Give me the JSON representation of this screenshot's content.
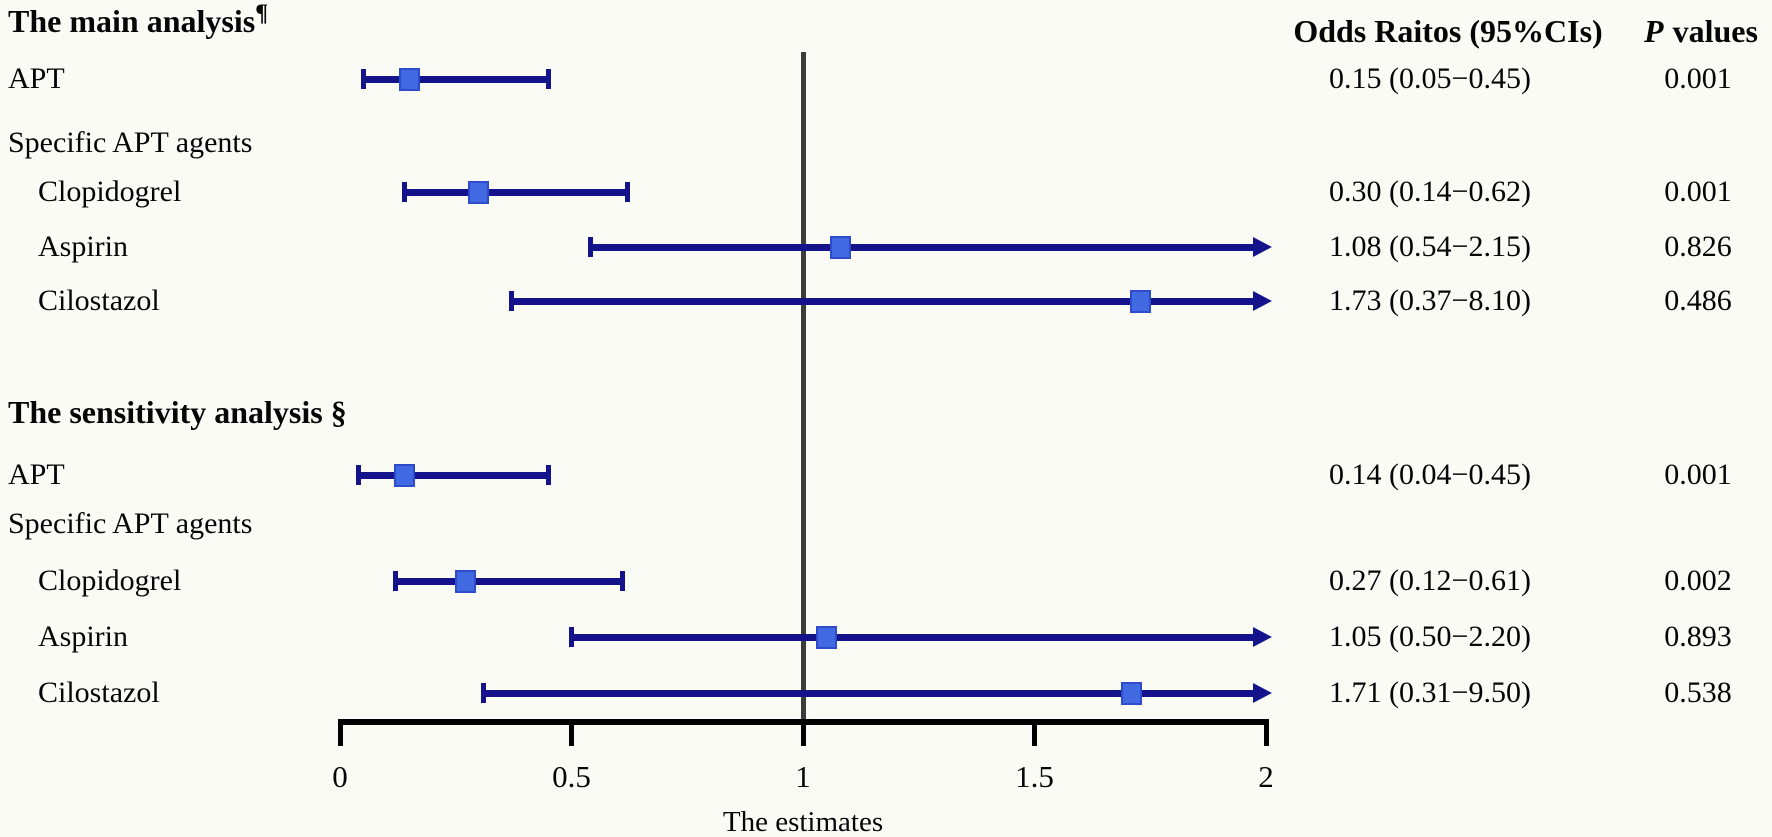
{
  "figure": {
    "xlabel": "The estimates"
  },
  "chart_data": {
    "type": "forest",
    "xlabel": "The estimates",
    "xlim": [
      0,
      2
    ],
    "x_ticks": [
      "0",
      "0.5",
      "1",
      "1.5",
      "2"
    ],
    "x_tick_values": [
      0,
      0.5,
      1,
      1.5,
      2
    ],
    "reference_line": 1,
    "grid": false,
    "columns": {
      "or_header": "Odds Raitos (95%CIs)",
      "p_header_italic": "P",
      "p_header_rest": "values"
    },
    "sections": [
      {
        "title": "The main analysis",
        "title_sup": "¶",
        "rows": [
          {
            "label": "APT",
            "indent": false,
            "group_header": false,
            "estimate": 0.15,
            "ci_low": 0.05,
            "ci_high": 0.45,
            "or_text": "0.15 (0.05−0.45)",
            "p_text": "0.001",
            "arrow_right": false
          },
          {
            "label": "Specific APT agents",
            "indent": false,
            "group_header": true
          },
          {
            "label": "Clopidogrel",
            "indent": true,
            "group_header": false,
            "estimate": 0.3,
            "ci_low": 0.14,
            "ci_high": 0.62,
            "or_text": "0.30 (0.14−0.62)",
            "p_text": "0.001",
            "arrow_right": false
          },
          {
            "label": "Aspirin",
            "indent": true,
            "group_header": false,
            "estimate": 1.08,
            "ci_low": 0.54,
            "ci_high": 2.15,
            "or_text": "1.08 (0.54−2.15)",
            "p_text": "0.826",
            "arrow_right": true
          },
          {
            "label": "Cilostazol",
            "indent": true,
            "group_header": false,
            "estimate": 1.73,
            "ci_low": 0.37,
            "ci_high": 8.1,
            "or_text": "1.73 (0.37−8.10)",
            "p_text": "0.486",
            "arrow_right": true
          }
        ]
      },
      {
        "title": "The sensitivity analysis §",
        "title_sup": "",
        "rows": [
          {
            "label": "APT",
            "indent": false,
            "group_header": false,
            "estimate": 0.14,
            "ci_low": 0.04,
            "ci_high": 0.45,
            "or_text": "0.14 (0.04−0.45)",
            "p_text": "0.001",
            "arrow_right": false
          },
          {
            "label": "Specific APT agents",
            "indent": false,
            "group_header": true
          },
          {
            "label": "Clopidogrel",
            "indent": true,
            "group_header": false,
            "estimate": 0.27,
            "ci_low": 0.12,
            "ci_high": 0.61,
            "or_text": "0.27 (0.12−0.61)",
            "p_text": "0.002",
            "arrow_right": false
          },
          {
            "label": "Aspirin",
            "indent": true,
            "group_header": false,
            "estimate": 1.05,
            "ci_low": 0.5,
            "ci_high": 2.2,
            "or_text": "1.05 (0.50−2.20)",
            "p_text": "0.893",
            "arrow_right": true
          },
          {
            "label": "Cilostazol",
            "indent": true,
            "group_header": false,
            "estimate": 1.71,
            "ci_low": 0.31,
            "ci_high": 9.5,
            "or_text": "1.71 (0.31−9.50)",
            "p_text": "0.538",
            "arrow_right": true
          }
        ]
      }
    ],
    "colors": {
      "ci_line": "#14138b",
      "marker_fill": "#4169e1",
      "marker_border": "#2e4bcb",
      "axis": "#000000",
      "reference_line": "#3c3c3c",
      "background": "#fbfbf6",
      "text": "#050505"
    }
  }
}
